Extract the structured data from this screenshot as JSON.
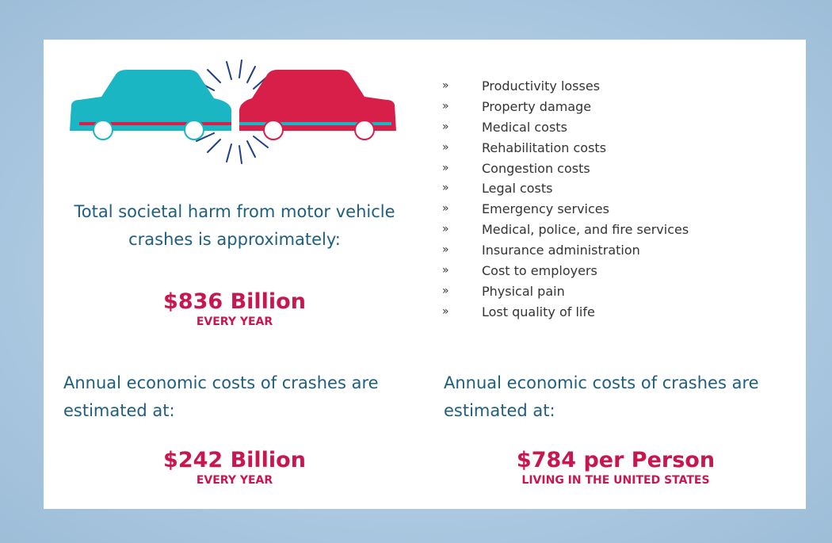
{
  "harm": {
    "lines": [
      "Total societal harm from motor vehicle",
      "crashes is approximately:"
    ],
    "amount": "$836 Billion",
    "period": "EVERY YEAR"
  },
  "list": {
    "bullet": "»",
    "items": [
      "Productivity losses",
      "Property damage",
      "Medical costs",
      "Rehabilitation costs",
      "Congestion costs",
      "Legal costs",
      "Emergency services",
      "Medical, police, and fire services",
      "Insurance administration",
      "Cost to employers",
      "Physical pain",
      "Lost quality of life"
    ]
  },
  "economic_total": {
    "lines": [
      "Annual economic costs of crashes are",
      "estimated at:"
    ],
    "amount": "$242 Billion",
    "period": "EVERY YEAR"
  },
  "economic_per_person": {
    "lines": [
      "Annual economic costs of crashes are",
      "estimated at:"
    ],
    "amount": "$784 per Person",
    "period": "LIVING IN THE UNITED STATES"
  }
}
